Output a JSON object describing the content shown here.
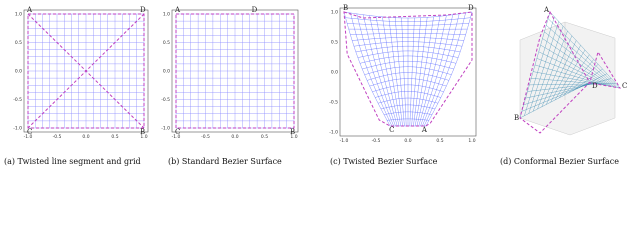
{
  "panels": [
    {
      "caption": "(a) Twisted line segment and grid",
      "corner_labels": [
        "A",
        "D",
        "C",
        "B"
      ],
      "x_ticks": [
        "-1.0",
        "-0.5",
        "0.0",
        "0.5",
        "1.0"
      ],
      "y_ticks": [
        "1.0",
        "0.5",
        "0.0",
        "-0.5",
        "-1.0"
      ]
    },
    {
      "caption": "(b) Standard Bezier Surface",
      "corner_labels": [
        "A",
        "D",
        "C",
        "B"
      ],
      "x_ticks": [
        "-1.0",
        "-0.5",
        "0.0",
        "0.5",
        "1.0"
      ],
      "y_ticks": [
        "1.0",
        "0.5",
        "0.0",
        "-0.5",
        "-1.0"
      ]
    },
    {
      "caption": "(c) Twisted Bezier Surface",
      "corner_labels": [
        "B",
        "D",
        "C",
        "A"
      ],
      "x_ticks": [
        "-1.0",
        "-0.5",
        "0.0",
        "0.5",
        "1.0"
      ],
      "y_ticks": [
        "1.0",
        "0.5",
        "0.0",
        "-0.5",
        "-1.0"
      ]
    },
    {
      "caption": "(d) Conformal Bezier Surface",
      "corner_labels": [
        "B",
        "C",
        "D",
        "A"
      ],
      "x_ticks": [],
      "y_ticks": []
    }
  ]
}
